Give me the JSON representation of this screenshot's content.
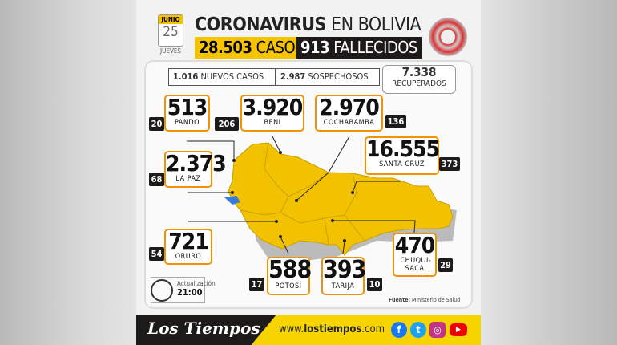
{
  "header": {
    "month": "JUNIO",
    "day": "25",
    "weekday": "JUEVES",
    "title_bold": "CORONAVIRUS",
    "title_rest": "EN BOLIVIA",
    "cases_value": "28.503",
    "cases_label": "CASOS",
    "deaths_value": "913",
    "deaths_label": "FALLECIDOS"
  },
  "stats": {
    "new_value": "1.016",
    "new_label": "NUEVOS CASOS",
    "suspect_value": "2.987",
    "suspect_label": "SOSPECHOSOS",
    "recovered_value": "7.338",
    "recovered_label": "RECUPERADOS"
  },
  "regions": [
    {
      "name": "PANDO",
      "cases": "513",
      "deaths": "20"
    },
    {
      "name": "BENI",
      "cases": "3.920",
      "deaths": "206"
    },
    {
      "name": "COCHABAMBA",
      "cases": "2.970",
      "deaths": "136"
    },
    {
      "name": "SANTA CRUZ",
      "cases": "16.555",
      "deaths": "373"
    },
    {
      "name": "LA PAZ",
      "cases": "2.373",
      "deaths": "68"
    },
    {
      "name": "ORURO",
      "cases": "721",
      "deaths": "54"
    },
    {
      "name": "POTOSÍ",
      "cases": "588",
      "deaths": "17"
    },
    {
      "name": "TARIJA",
      "cases": "393",
      "deaths": "10"
    },
    {
      "name": "CHUQUI-SACA",
      "cases": "470",
      "deaths": "29"
    }
  ],
  "update": {
    "label": "Actualización",
    "time": "21:00"
  },
  "source": {
    "label": "Fuente:",
    "value": "Ministerio de Salud"
  },
  "footer": {
    "logo": "Los Tiempos",
    "url_pre": "www.",
    "url_bold": "lostiempos",
    "url_post": ".com"
  },
  "colors": {
    "yellow": "#f5c400",
    "orange": "#f39200",
    "dark": "#1d1a1a",
    "map": "#f2c200"
  }
}
